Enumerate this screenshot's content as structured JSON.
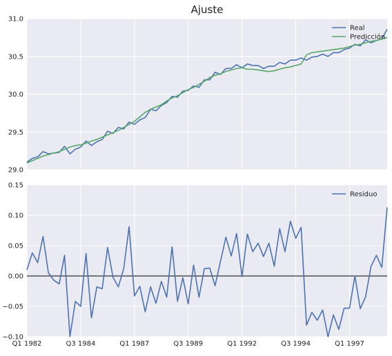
{
  "title": "Ajuste",
  "colors": {
    "panel_bg": "#eaeaf2",
    "grid": "#ffffff",
    "real": "#4c72b0",
    "pred": "#55a868",
    "residual": "#4c72b0",
    "zero_line": "#000000"
  },
  "x_tick_labels": [
    "Q1 1982",
    "Q3 1984",
    "Q1 1987",
    "Q3 1989",
    "Q1 1992",
    "Q3 1994",
    "Q1 1997"
  ],
  "chart_data": [
    {
      "type": "line",
      "title": "Ajuste",
      "xlabel": "",
      "ylabel": "",
      "ylim": [
        29.0,
        31.0
      ],
      "yticks": [
        "29.0",
        "29.5",
        "30.0",
        "30.5",
        "31.0"
      ],
      "legend": "top-right",
      "grid": true,
      "x_quarters": "Q1 1982 to Q4 1998",
      "series": [
        {
          "name": "Real",
          "values": [
            29.1,
            29.15,
            29.17,
            29.24,
            29.21,
            29.22,
            29.23,
            29.31,
            29.21,
            29.27,
            29.3,
            29.38,
            29.32,
            29.37,
            29.4,
            29.51,
            29.48,
            29.56,
            29.54,
            29.63,
            29.6,
            29.66,
            29.69,
            29.8,
            29.78,
            29.85,
            29.89,
            29.97,
            29.96,
            30.04,
            30.05,
            30.11,
            30.09,
            30.19,
            30.19,
            30.29,
            30.26,
            30.34,
            30.34,
            30.39,
            30.35,
            30.4,
            30.38,
            30.38,
            30.34,
            30.37,
            30.37,
            30.42,
            30.4,
            30.45,
            30.45,
            30.48,
            30.45,
            30.49,
            30.5,
            30.53,
            30.5,
            30.55,
            30.55,
            30.59,
            30.61,
            30.66,
            30.64,
            30.72,
            30.68,
            30.71,
            30.73,
            30.86
          ]
        },
        {
          "name": "Predicción",
          "values": [
            29.09,
            29.12,
            29.15,
            29.18,
            29.2,
            29.22,
            29.24,
            29.27,
            29.3,
            29.32,
            29.33,
            29.35,
            29.38,
            29.4,
            29.43,
            29.46,
            29.49,
            29.52,
            29.56,
            29.6,
            29.64,
            29.7,
            29.76,
            29.8,
            29.83,
            29.86,
            29.91,
            29.95,
            29.98,
            30.02,
            30.06,
            30.09,
            30.13,
            30.17,
            30.22,
            30.25,
            30.27,
            30.3,
            30.32,
            30.34,
            30.35,
            30.33,
            30.33,
            30.32,
            30.31,
            30.3,
            30.31,
            30.33,
            30.35,
            30.36,
            30.38,
            30.4,
            30.52,
            30.55,
            30.56,
            30.57,
            30.58,
            30.59,
            30.6,
            30.61,
            30.63,
            30.65,
            30.66,
            30.68,
            30.7,
            30.71,
            30.73,
            30.75
          ]
        }
      ]
    },
    {
      "type": "line",
      "xlabel": "",
      "ylabel": "",
      "ylim": [
        -0.1,
        0.15
      ],
      "yticks": [
        "−0.10",
        "−0.05",
        "0.00",
        "0.05",
        "0.10",
        "0.15"
      ],
      "legend": "top-right",
      "grid": true,
      "zero_line": true,
      "series": [
        {
          "name": "Residuo",
          "values": [
            0.01,
            0.038,
            0.022,
            0.065,
            0.005,
            -0.007,
            -0.013,
            0.034,
            -0.1,
            -0.042,
            -0.05,
            0.037,
            -0.069,
            -0.018,
            -0.021,
            0.047,
            -0.002,
            -0.018,
            0.012,
            0.081,
            -0.033,
            -0.017,
            -0.059,
            -0.018,
            -0.045,
            -0.009,
            -0.035,
            0.048,
            -0.042,
            -0.003,
            -0.046,
            0.018,
            -0.035,
            0.012,
            0.013,
            -0.016,
            0.024,
            0.064,
            0.033,
            0.07,
            -0.001,
            0.069,
            0.04,
            0.054,
            0.032,
            0.054,
            0.016,
            0.078,
            0.04,
            0.09,
            0.062,
            0.08,
            -0.081,
            -0.06,
            -0.073,
            -0.056,
            -0.1,
            -0.064,
            -0.088,
            -0.053,
            -0.053,
            0.0,
            -0.054,
            -0.034,
            0.016,
            0.034,
            0.014,
            0.113
          ]
        }
      ]
    }
  ]
}
